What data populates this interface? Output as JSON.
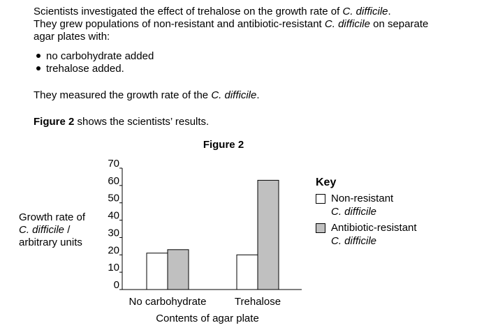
{
  "text": {
    "p1_a": "Scientists investigated the effect of trehalose on the growth rate of ",
    "p1_species": "C. difficile",
    "p1_b": ".",
    "p2_a": "They grew populations of non-resistant and antibiotic-resistant ",
    "p2_species": "C. difficile",
    "p2_b": " on separate",
    "p3": "agar plates with:",
    "bullet1": "no carbohydrate added",
    "bullet2": "trehalose added.",
    "p4_a": "They measured the growth rate of the ",
    "p4_species": "C. difficile",
    "p4_b": ".",
    "p5_bold": "Figure 2",
    "p5_rest": " shows the scientists’ results."
  },
  "chart_data": {
    "type": "bar",
    "title": "Figure 2",
    "ylabel_line1": "Growth rate of",
    "ylabel_species": "C. difficile",
    "ylabel_slash": " /",
    "ylabel_line3": "arbitrary units",
    "xlabel": "Contents of agar plate",
    "ylim": [
      0,
      70
    ],
    "yticks": [
      0,
      10,
      20,
      30,
      40,
      50,
      60,
      70
    ],
    "categories": [
      "No carbohydrate",
      "Trehalose"
    ],
    "series": [
      {
        "name": "Non-resistant C. difficile",
        "values": [
          21,
          20
        ],
        "color": "#ffffff"
      },
      {
        "name": "Antibiotic-resistant C. difficile",
        "values": [
          23,
          63
        ],
        "color": "#c0c0c0"
      }
    ],
    "legend": {
      "title": "Key",
      "placement": "right",
      "items": [
        {
          "label": "Non-resistant",
          "species": "C. difficile",
          "color": "#ffffff"
        },
        {
          "label": "Antibiotic-resistant",
          "species": "C. difficile",
          "color": "#c0c0c0"
        }
      ]
    },
    "grid": false
  }
}
